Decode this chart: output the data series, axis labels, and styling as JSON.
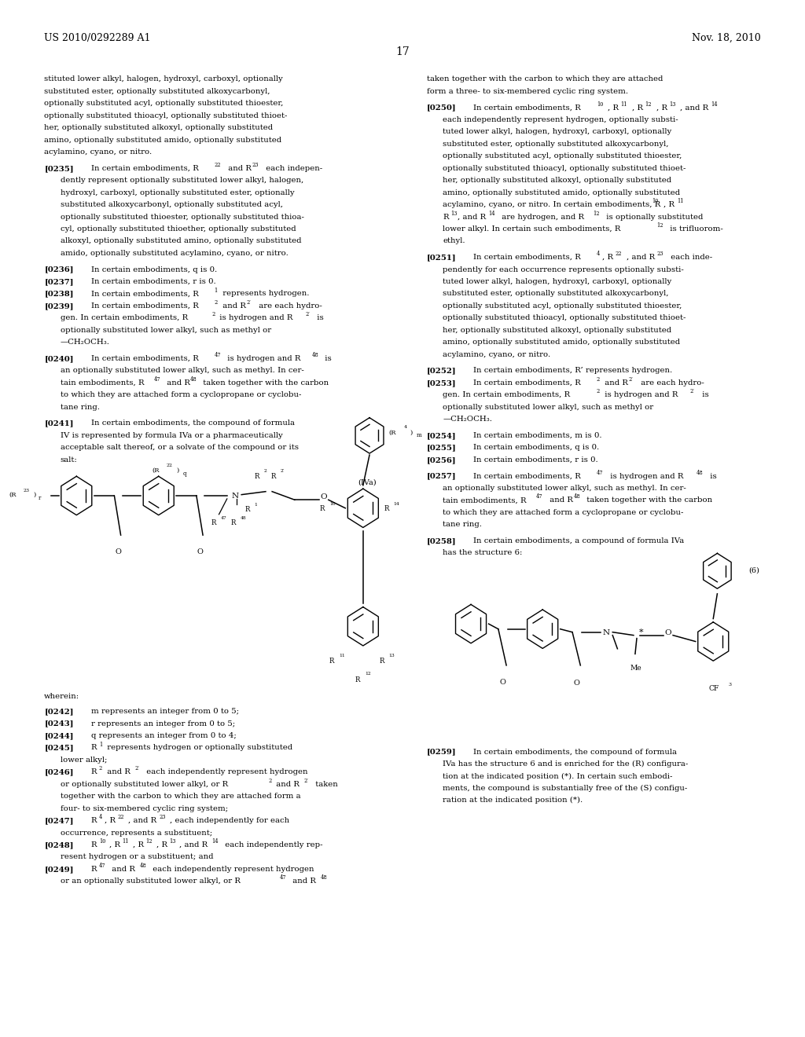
{
  "bg_color": "#ffffff",
  "text_color": "#000000",
  "header_left": "US 2010/0292289 A1",
  "header_right": "Nov. 18, 2010",
  "page_num": "17"
}
